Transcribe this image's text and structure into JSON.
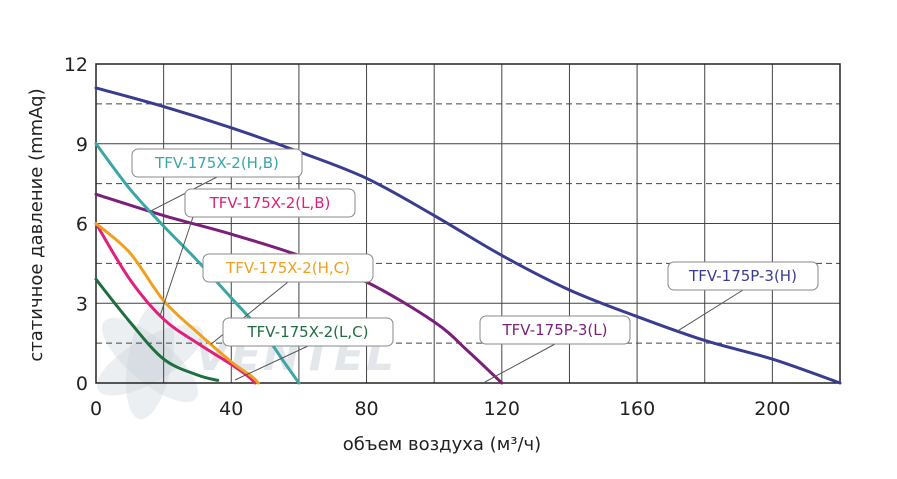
{
  "chart_data": {
    "type": "line",
    "title": "",
    "xlabel": "объем воздуха (м³/ч)",
    "ylabel": "статичное давление (mmAq)",
    "xlim": [
      0,
      220
    ],
    "ylim": [
      0,
      12
    ],
    "xticks": [
      0,
      40,
      80,
      120,
      160,
      200
    ],
    "yticks": [
      0,
      3,
      6,
      9,
      12
    ],
    "grid": "solid vertical every 20, dashed horizontal every 1.5",
    "watermark": "VENTEL",
    "series": [
      {
        "name": "TFV-175P-3(H)",
        "color": "#3a3d8f",
        "x": [
          0,
          20,
          40,
          60,
          80,
          100,
          120,
          140,
          160,
          180,
          200,
          220
        ],
        "y": [
          11.1,
          10.4,
          9.6,
          8.7,
          7.7,
          6.3,
          4.8,
          3.5,
          2.5,
          1.6,
          0.9,
          0
        ]
      },
      {
        "name": "TFV-175P-3(L)",
        "color": "#7a1f7a",
        "x": [
          0,
          20,
          40,
          60,
          80,
          100,
          110,
          120
        ],
        "y": [
          7.1,
          6.3,
          5.6,
          4.8,
          3.8,
          2.3,
          1.2,
          0
        ]
      },
      {
        "name": "TFV-175X-2(H,B)",
        "color": "#3aa6a6",
        "x": [
          0,
          10,
          20,
          30,
          40,
          50,
          55,
          60
        ],
        "y": [
          9.0,
          7.3,
          5.9,
          4.6,
          3.2,
          1.8,
          0.9,
          0
        ]
      },
      {
        "name": "TFV-175X-2(L,B)",
        "color": "#e0207a",
        "x": [
          0,
          10,
          20,
          30,
          40,
          45,
          47
        ],
        "y": [
          6.0,
          3.9,
          2.4,
          1.5,
          0.7,
          0.25,
          0
        ]
      },
      {
        "name": "TFV-175X-2(H,C)",
        "color": "#f0a020",
        "x": [
          0,
          10,
          20,
          30,
          40,
          46,
          48
        ],
        "y": [
          6.0,
          4.9,
          3.1,
          1.9,
          0.8,
          0.25,
          0
        ]
      },
      {
        "name": "TFV-175X-2(L,C)",
        "color": "#1f6e3f",
        "x": [
          0,
          10,
          20,
          30,
          36
        ],
        "y": [
          3.9,
          2.3,
          0.9,
          0.3,
          0.1
        ]
      }
    ],
    "callouts": [
      {
        "text": "TFV-175X-2(H,B)",
        "color": "#3aa6a6",
        "anchor_series": 2,
        "anchor_x": 16
      },
      {
        "text": "TFV-175X-2(L,B)",
        "color": "#e0207a",
        "anchor_series": 3,
        "anchor_x": 19
      },
      {
        "text": "TFV-175X-2(H,C)",
        "color": "#f0a020",
        "anchor_series": 4,
        "anchor_x": 34
      },
      {
        "text": "TFV-175X-2(L,C)",
        "color": "#1f6e3f",
        "anchor_series": 5,
        "anchor_x": 0
      },
      {
        "text": "TFV-175P-3(L)",
        "color": "#7a1f7a",
        "anchor_series": 1,
        "anchor_x": 0
      },
      {
        "text": "TFV-175P-3(H)",
        "color": "#3a3d8f",
        "anchor_series": 0,
        "anchor_x": 172
      }
    ]
  }
}
